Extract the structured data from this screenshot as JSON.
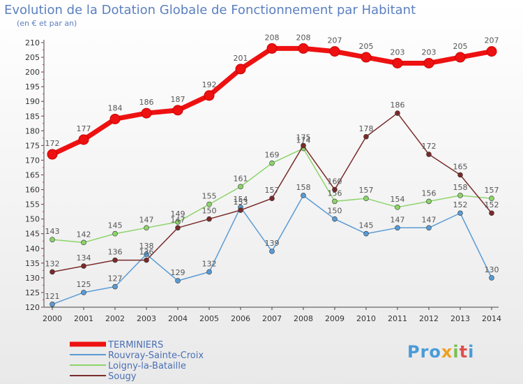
{
  "title": "Evolution de la Dotation Globale de Fonctionnement par Habitant",
  "subtitle": "(en € et par an)",
  "logo_text": "Proxiti",
  "chart_data": {
    "type": "line",
    "x": [
      "2000",
      "2001",
      "2002",
      "2003",
      "2004",
      "2005",
      "2006",
      "2007",
      "2008",
      "2009",
      "2010",
      "2011",
      "2012",
      "2013",
      "2014"
    ],
    "ylim": [
      120,
      210
    ],
    "yticks": [
      120,
      125,
      130,
      135,
      140,
      145,
      150,
      155,
      160,
      165,
      170,
      175,
      180,
      185,
      190,
      195,
      200,
      205,
      210
    ],
    "grid": false,
    "legend_position": "bottom-left",
    "series": [
      {
        "name": "TERMINIERS",
        "color": "#ee1111",
        "values": [
          172,
          177,
          184,
          186,
          187,
          192,
          201,
          208,
          208,
          207,
          205,
          203,
          203,
          205,
          207
        ]
      },
      {
        "name": "Rouvray-Sainte-Croix",
        "color": "#5a9bd5",
        "values": [
          121,
          125,
          127,
          138,
          129,
          132,
          154,
          139,
          158,
          150,
          145,
          147,
          147,
          152,
          130
        ]
      },
      {
        "name": "Loigny-la-Bataille",
        "color": "#8cd46a",
        "values": [
          143,
          142,
          145,
          147,
          149,
          155,
          161,
          169,
          174,
          156,
          157,
          154,
          156,
          158,
          157
        ]
      },
      {
        "name": "Sougy",
        "color": "#7a2a2a",
        "values": [
          132,
          134,
          136,
          136,
          147,
          150,
          153,
          157,
          175,
          160,
          178,
          186,
          172,
          165,
          152
        ]
      }
    ]
  }
}
